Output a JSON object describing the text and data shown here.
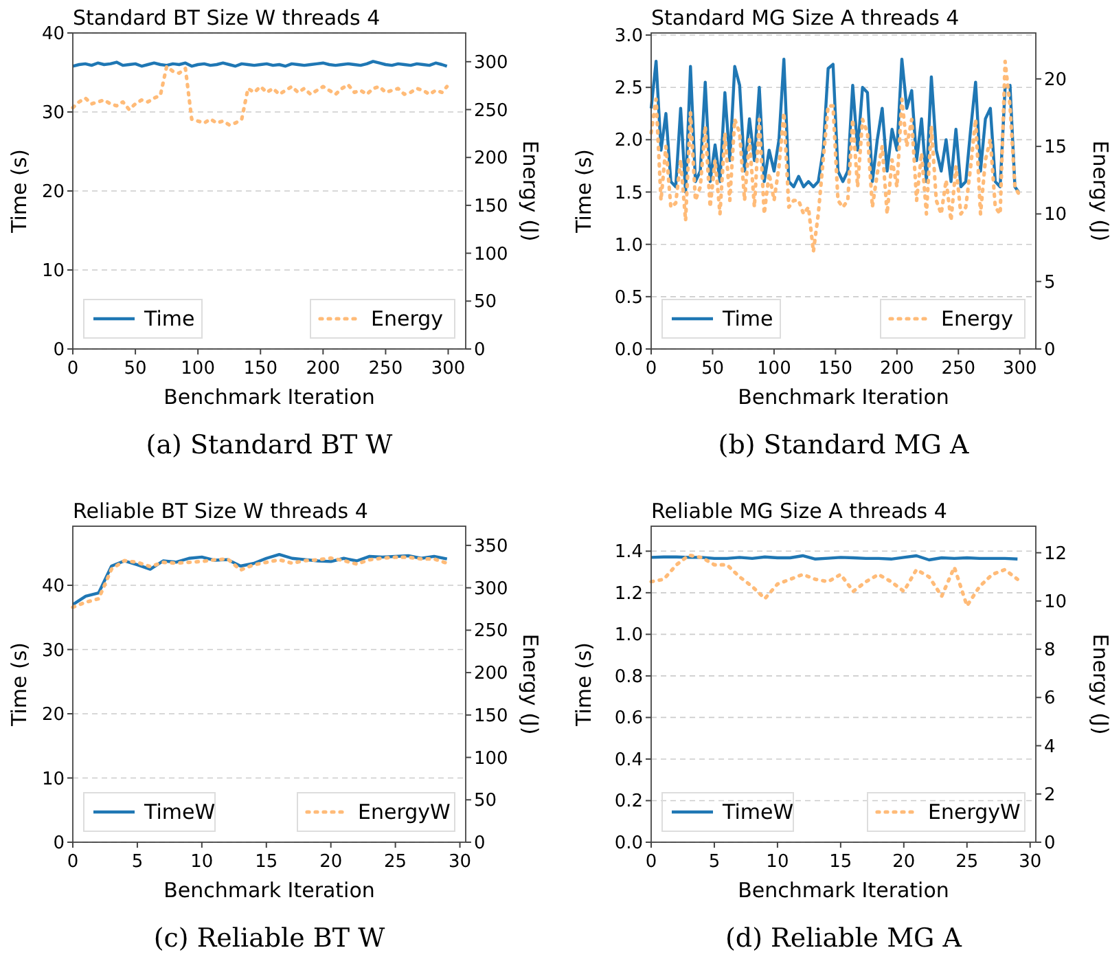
{
  "chart_data": [
    {
      "type": "line",
      "title": "Standard BT Size W threads 4",
      "xlabel": "Benchmark Iteration",
      "ylabel": "Time (s)",
      "y2label": "Energy (J)",
      "annotations": [
        "(a) Standard BT W"
      ],
      "x": [
        0,
        5,
        10,
        15,
        20,
        25,
        30,
        35,
        40,
        45,
        50,
        55,
        60,
        65,
        70,
        75,
        80,
        85,
        90,
        95,
        100,
        105,
        110,
        115,
        120,
        125,
        130,
        135,
        140,
        145,
        150,
        155,
        160,
        165,
        170,
        175,
        180,
        185,
        190,
        195,
        200,
        205,
        210,
        215,
        220,
        225,
        230,
        235,
        240,
        245,
        250,
        255,
        260,
        265,
        270,
        275,
        280,
        285,
        290,
        295,
        299
      ],
      "series": [
        {
          "name": "Time",
          "color": "#1f77b4",
          "line_style": "solid",
          "values": [
            35.8,
            36.0,
            36.1,
            35.9,
            36.2,
            36.0,
            36.1,
            36.3,
            35.9,
            36.0,
            36.1,
            35.8,
            36.0,
            36.2,
            36.0,
            35.9,
            36.1,
            36.0,
            36.2,
            35.8,
            36.0,
            36.1,
            35.9,
            36.0,
            36.2,
            36.0,
            35.8,
            36.1,
            36.0,
            35.9,
            36.0,
            36.1,
            35.9,
            36.0,
            35.8,
            36.1,
            36.0,
            35.9,
            36.0,
            36.1,
            36.2,
            36.0,
            35.9,
            36.0,
            36.1,
            36.0,
            35.9,
            36.1,
            36.4,
            36.2,
            36.0,
            35.9,
            36.1,
            36.0,
            35.9,
            36.1,
            36.0,
            35.9,
            36.2,
            36.0,
            35.8
          ]
        },
        {
          "name": "Energy",
          "color": "#ffbb78",
          "line_style": "dotted",
          "axis": "y2",
          "values": [
            252,
            258,
            262,
            256,
            258,
            260,
            256,
            254,
            258,
            250,
            256,
            260,
            258,
            262,
            265,
            295,
            290,
            288,
            293,
            240,
            238,
            236,
            240,
            236,
            238,
            234,
            236,
            240,
            272,
            268,
            274,
            268,
            272,
            266,
            270,
            274,
            268,
            272,
            266,
            270,
            274,
            270,
            266,
            272,
            276,
            268,
            270,
            266,
            272,
            274,
            268,
            270,
            272,
            266,
            268,
            272,
            270,
            266,
            270,
            268,
            274
          ]
        }
      ],
      "xlim": [
        0,
        314
      ],
      "xticks": [
        0,
        50,
        100,
        150,
        200,
        250,
        300
      ],
      "ylim": [
        0,
        40
      ],
      "yticks": [
        0,
        10,
        20,
        30,
        40
      ],
      "y2lim": [
        0,
        330
      ],
      "y2ticks": [
        0,
        50,
        100,
        150,
        200,
        250,
        300
      ],
      "grid": "y",
      "legend": "bottom",
      "marker": "none"
    },
    {
      "type": "line",
      "title": "Standard MG Size A threads 4",
      "xlabel": "Benchmark Iteration",
      "ylabel": "Time (s)",
      "y2label": "Energy (J)",
      "annotations": [
        "(b) Standard MG A"
      ],
      "x": [
        0,
        4,
        8,
        12,
        16,
        20,
        24,
        28,
        32,
        36,
        40,
        44,
        48,
        52,
        56,
        60,
        64,
        68,
        72,
        76,
        80,
        84,
        88,
        92,
        96,
        100,
        104,
        108,
        112,
        116,
        120,
        124,
        128,
        132,
        136,
        140,
        144,
        148,
        152,
        156,
        160,
        164,
        168,
        172,
        176,
        180,
        184,
        188,
        192,
        196,
        200,
        204,
        208,
        212,
        216,
        220,
        224,
        228,
        232,
        236,
        240,
        244,
        248,
        252,
        256,
        260,
        264,
        268,
        272,
        276,
        280,
        284,
        288,
        292,
        296,
        299
      ],
      "series": [
        {
          "name": "Time",
          "color": "#1f77b4",
          "line_style": "solid",
          "values": [
            2.3,
            2.75,
            1.9,
            2.25,
            1.6,
            1.55,
            2.3,
            1.5,
            2.7,
            1.6,
            1.7,
            2.55,
            1.6,
            1.95,
            1.6,
            2.45,
            1.8,
            2.7,
            2.52,
            1.7,
            2.2,
            1.8,
            2.5,
            1.6,
            1.9,
            1.7,
            2.0,
            2.77,
            1.6,
            1.55,
            1.65,
            1.55,
            1.6,
            1.55,
            1.6,
            1.9,
            2.68,
            2.72,
            1.7,
            1.6,
            1.7,
            2.52,
            1.9,
            2.5,
            2.45,
            1.6,
            2.0,
            2.3,
            1.7,
            2.1,
            1.9,
            2.77,
            2.3,
            2.47,
            1.8,
            2.2,
            1.6,
            2.6,
            1.9,
            1.7,
            2.0,
            1.6,
            2.1,
            1.55,
            1.6,
            2.1,
            2.55,
            1.7,
            2.2,
            2.3,
            1.6,
            1.55,
            2.5,
            2.52,
            1.55,
            1.5
          ]
        },
        {
          "name": "Energy",
          "color": "#ffbb78",
          "line_style": "dotted",
          "axis": "y2",
          "values": [
            16,
            18.5,
            11,
            15,
            10.5,
            10.8,
            14,
            9.5,
            17.5,
            11,
            12,
            16.5,
            10.5,
            14,
            10,
            16,
            11,
            17,
            16,
            11,
            15.5,
            10.5,
            17,
            10,
            13,
            11,
            13.5,
            17.5,
            10.5,
            11,
            11,
            10,
            10.5,
            7.2,
            10,
            14,
            18,
            18,
            11,
            10.5,
            11,
            17,
            12,
            17,
            16,
            10.5,
            13,
            15,
            10,
            14,
            12,
            18.5,
            15,
            17,
            11,
            14.5,
            10,
            16.5,
            11,
            10,
            12.5,
            9.5,
            13.5,
            10,
            10.5,
            13.5,
            17,
            10,
            14,
            15.5,
            10.5,
            10,
            21.3,
            18,
            12,
            11.5
          ]
        }
      ],
      "xlim": [
        0,
        313
      ],
      "xticks": [
        0,
        50,
        100,
        150,
        200,
        250,
        300
      ],
      "ylim": [
        0,
        3.02
      ],
      "yticks": [
        {
          "value": 0,
          "label": "0.0"
        },
        0.5,
        {
          "value": 1,
          "label": "1.0"
        },
        1.5,
        {
          "value": 2,
          "label": "2.0"
        },
        2.5,
        {
          "value": 3,
          "label": "3.0"
        }
      ],
      "y2lim": [
        0,
        23.4
      ],
      "y2ticks": [
        0,
        5,
        10,
        15,
        20
      ],
      "grid": "y",
      "legend": "bottom",
      "marker": "none"
    },
    {
      "type": "line",
      "title": "Reliable BT Size W threads 4",
      "xlabel": "Benchmark Iteration",
      "ylabel": "Time (s)",
      "y2label": "Energy (J)",
      "annotations": [
        "(c) Reliable BT W"
      ],
      "x": [
        0,
        1,
        2,
        3,
        4,
        5,
        6,
        7,
        8,
        9,
        10,
        11,
        12,
        13,
        14,
        15,
        16,
        17,
        18,
        19,
        20,
        21,
        22,
        23,
        24,
        25,
        26,
        27,
        28,
        29
      ],
      "series": [
        {
          "name": "TimeW",
          "color": "#1f77b4",
          "line_style": "solid",
          "values": [
            37.0,
            38.3,
            38.8,
            43.0,
            43.8,
            43.2,
            42.5,
            43.8,
            43.6,
            44.2,
            44.4,
            43.9,
            44.0,
            43.0,
            43.4,
            44.2,
            44.8,
            44.2,
            44.0,
            43.8,
            43.7,
            44.2,
            43.8,
            44.5,
            44.4,
            44.5,
            44.6,
            44.2,
            44.5,
            44.1
          ]
        },
        {
          "name": "EnergyW",
          "color": "#ffbb78",
          "line_style": "dotted",
          "axis": "y2",
          "values": [
            277,
            283,
            287,
            322,
            332,
            330,
            325,
            330,
            329,
            330,
            331,
            333,
            334,
            321,
            327,
            330,
            333,
            329,
            332,
            333,
            335,
            332,
            328,
            333,
            335,
            336,
            336,
            334,
            334,
            329
          ]
        }
      ],
      "xlim": [
        0,
        30.45
      ],
      "xticks": [
        0,
        5,
        10,
        15,
        20,
        25,
        30
      ],
      "ylim": [
        0,
        49.2
      ],
      "yticks": [
        0,
        10,
        20,
        30,
        40
      ],
      "y2lim": [
        0,
        372.6
      ],
      "y2ticks": [
        0,
        50,
        100,
        150,
        200,
        250,
        300,
        350
      ],
      "grid": "y",
      "legend": "bottom",
      "marker": "none"
    },
    {
      "type": "line",
      "title": "Reliable MG Size A threads 4",
      "xlabel": "Benchmark Iteration",
      "ylabel": "Time (s)",
      "y2label": "Energy (J)",
      "annotations": [
        "(d) Reliable MG A"
      ],
      "x": [
        0,
        1,
        2,
        3,
        4,
        5,
        6,
        7,
        8,
        9,
        10,
        11,
        12,
        13,
        14,
        15,
        16,
        17,
        18,
        19,
        20,
        21,
        22,
        23,
        24,
        25,
        26,
        27,
        28,
        29
      ],
      "series": [
        {
          "name": "TimeW",
          "color": "#1f77b4",
          "line_style": "solid",
          "values": [
            1.37,
            1.372,
            1.372,
            1.37,
            1.37,
            1.365,
            1.365,
            1.37,
            1.365,
            1.372,
            1.368,
            1.368,
            1.378,
            1.362,
            1.366,
            1.37,
            1.368,
            1.365,
            1.365,
            1.362,
            1.37,
            1.378,
            1.358,
            1.368,
            1.365,
            1.368,
            1.365,
            1.365,
            1.365,
            1.362
          ]
        },
        {
          "name": "EnergyW",
          "color": "#ffbb78",
          "line_style": "dotted",
          "axis": "y2",
          "values": [
            10.8,
            10.9,
            11.5,
            11.9,
            11.8,
            11.5,
            11.5,
            11.0,
            10.6,
            10.1,
            10.7,
            10.9,
            11.1,
            10.9,
            10.8,
            11.1,
            10.4,
            10.8,
            11.1,
            10.8,
            10.4,
            11.3,
            11.0,
            10.2,
            11.4,
            9.8,
            10.6,
            11.1,
            11.3,
            10.9
          ]
        }
      ],
      "xlim": [
        0,
        30.45
      ],
      "xticks": [
        0,
        5,
        10,
        15,
        20,
        25,
        30
      ],
      "ylim": [
        0,
        1.52
      ],
      "yticks": [
        {
          "value": 0,
          "label": "0.0"
        },
        0.2,
        0.4,
        0.6,
        0.8,
        {
          "value": 1,
          "label": "1.0"
        },
        1.2,
        1.4
      ],
      "y2lim": [
        0,
        13.1
      ],
      "y2ticks": [
        0,
        2,
        4,
        6,
        8,
        10,
        12
      ],
      "grid": "y",
      "legend": "bottom",
      "marker": "none"
    }
  ]
}
